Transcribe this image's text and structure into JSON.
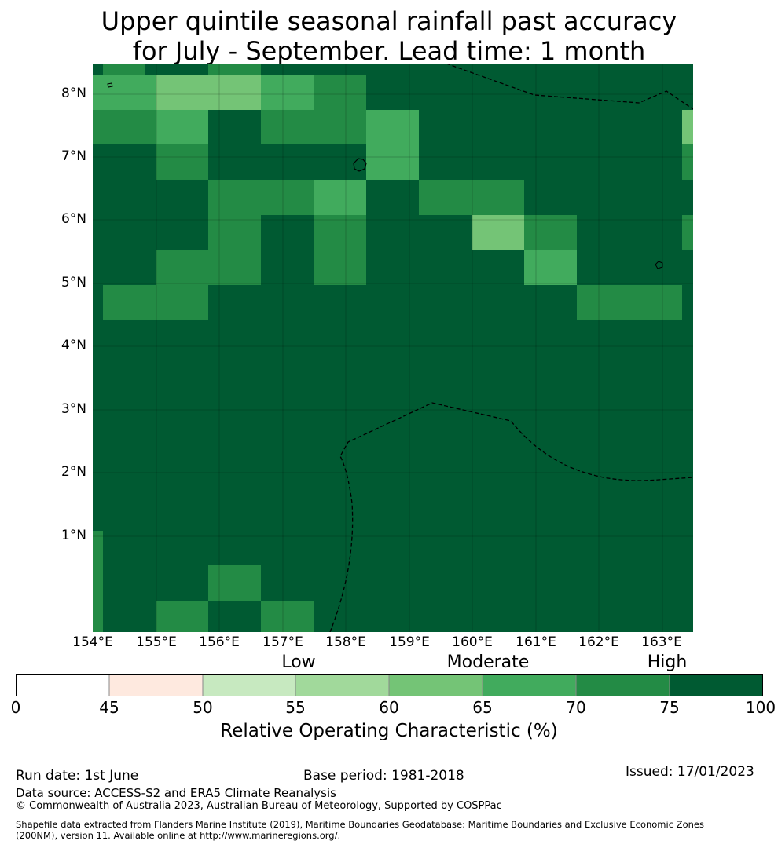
{
  "title_line1": "Upper quintile seasonal rainfall past accuracy",
  "title_line2": "for July - September. Lead time: 1 month",
  "lat_labels": [
    "8°N",
    "7°N",
    "6°N",
    "5°N",
    "4°N",
    "3°N",
    "2°N",
    "1°N"
  ],
  "lon_labels": [
    "154°E",
    "155°E",
    "156°E",
    "157°E",
    "158°E",
    "159°E",
    "160°E",
    "161°E",
    "162°E",
    "163°E"
  ],
  "colorbar": {
    "category_labels": [
      "Low",
      "Moderate",
      "High"
    ],
    "boundaries": [
      "0",
      "45",
      "50",
      "55",
      "60",
      "65",
      "70",
      "75",
      "100"
    ],
    "colors": [
      "#ffffff",
      "#fee9df",
      "#c7e9c0",
      "#a1d99b",
      "#74c476",
      "#41ab5d",
      "#238b45",
      "#005a32"
    ],
    "label": "Relative Operating Characteristic (%)"
  },
  "footer": {
    "run_date": "Run date: 1st June",
    "base_period": "Base period: 1981-2018",
    "issued": "Issued: 17/01/2023",
    "data_source": "Data source: ACCESS-S2 and ERA5 Climate Reanalysis",
    "copyright": "© Commonwealth of Australia 2023, Australian Bureau of Meteorology, Supported by COSPPac",
    "shapefile_line1": "Shapefile data extracted from Flanders Marine Institute (2019), Maritime Boundaries Geodatabase: Maritime Boundaries and Exclusive Economic Zones",
    "shapefile_line2": "(200NM), version 11. Available online at http://www.marineregions.org/."
  }
}
